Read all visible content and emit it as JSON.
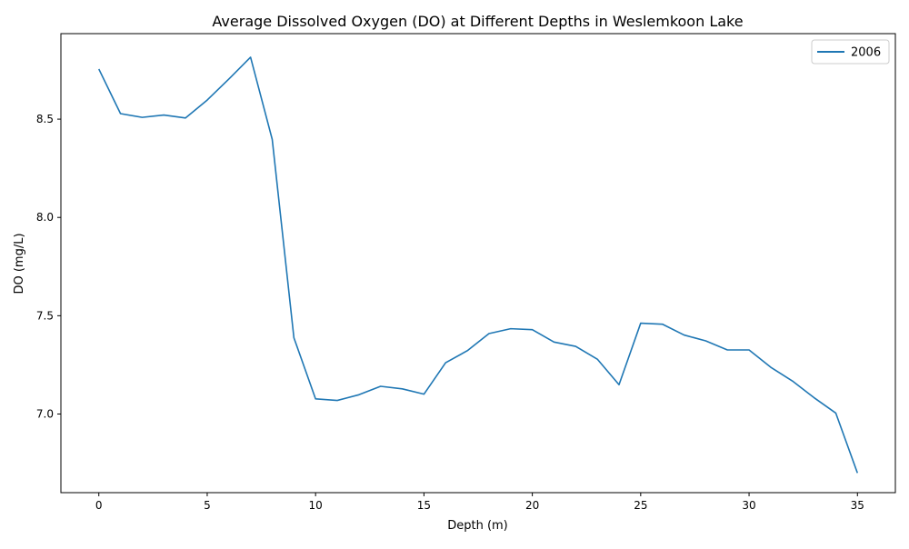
{
  "colors": {
    "series_line": "#1f77b4",
    "axes": "#000000",
    "legend_border": "#cccccc",
    "background": "#ffffff"
  },
  "chart_data": {
    "type": "line",
    "title": "Average Dissolved Oxygen (DO) at Different Depths in Weslemkoon Lake",
    "xlabel": "Depth (m)",
    "ylabel": "DO (mg/L)",
    "xlim": [
      -1.75,
      36.75
    ],
    "ylim": [
      6.6,
      8.935
    ],
    "xticks": [
      0,
      5,
      10,
      15,
      20,
      25,
      30,
      35
    ],
    "yticks": [
      7.0,
      7.5,
      8.0,
      8.5
    ],
    "ytick_labels": [
      "7.0",
      "7.5",
      "8.0",
      "8.5"
    ],
    "grid": false,
    "legend_position": "top-right",
    "series": [
      {
        "name": "2006",
        "x": [
          0,
          1,
          2,
          3,
          4,
          5,
          6,
          7,
          8,
          9,
          10,
          11,
          12,
          13,
          14,
          15,
          16,
          17,
          18,
          19,
          20,
          21,
          22,
          23,
          24,
          25,
          26,
          27,
          28,
          29,
          30,
          31,
          32,
          33,
          34,
          35
        ],
        "y": [
          8.755,
          8.528,
          8.509,
          8.521,
          8.506,
          8.597,
          8.704,
          8.815,
          8.397,
          7.388,
          7.077,
          7.069,
          7.098,
          7.141,
          7.128,
          7.101,
          7.261,
          7.322,
          7.409,
          7.434,
          7.429,
          7.366,
          7.344,
          7.279,
          7.149,
          7.462,
          7.457,
          7.402,
          7.372,
          7.326,
          7.326,
          7.238,
          7.168,
          7.083,
          7.005,
          6.7
        ]
      }
    ]
  }
}
